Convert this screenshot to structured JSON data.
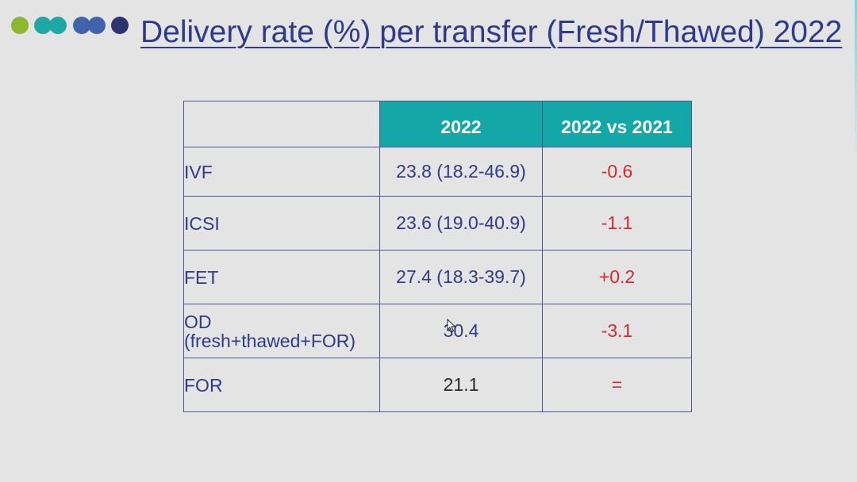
{
  "slide": {
    "title": "Delivery rate (%) per transfer (Fresh/Thawed) 2022",
    "title_color": "#2f3a8f",
    "background": "#e4e4e4"
  },
  "decor_dots": [
    {
      "color": "#8ab831"
    },
    {
      "color": "#1fa6a6"
    },
    {
      "color": "#1fa6a6"
    },
    {
      "color": "#3f63ad"
    },
    {
      "color": "#3f63ad"
    },
    {
      "color": "#2c3570"
    }
  ],
  "table": {
    "header_color": "#13a7a7",
    "border_color": "#4f5591",
    "label_color": "#2f3a8f",
    "value_color_blue": "#2f3a8f",
    "value_color_dark": "#2a2a2a",
    "change_color": "#d9282a",
    "columns": [
      "",
      "2022",
      "2022 vs 2021"
    ],
    "rows": [
      {
        "label_line1": "IVF",
        "label_line2": "",
        "value": "23.8 (18.2-46.9)",
        "value_style": "blue",
        "change": "-0.6"
      },
      {
        "label_line1": "ICSI",
        "label_line2": "",
        "value": "23.6 (19.0-40.9)",
        "value_style": "blue",
        "change": "-1.1"
      },
      {
        "label_line1": "FET",
        "label_line2": "",
        "value": "27.4 (18.3-39.7)",
        "value_style": "blue",
        "change": "+0.2"
      },
      {
        "label_line1": "OD",
        "label_line2": "(fresh+thawed+FOR)",
        "value": "30.4",
        "value_style": "blue",
        "change": "-3.1"
      },
      {
        "label_line1": "FOR",
        "label_line2": "",
        "value": "21.1",
        "value_style": "dark",
        "change": "="
      }
    ]
  }
}
